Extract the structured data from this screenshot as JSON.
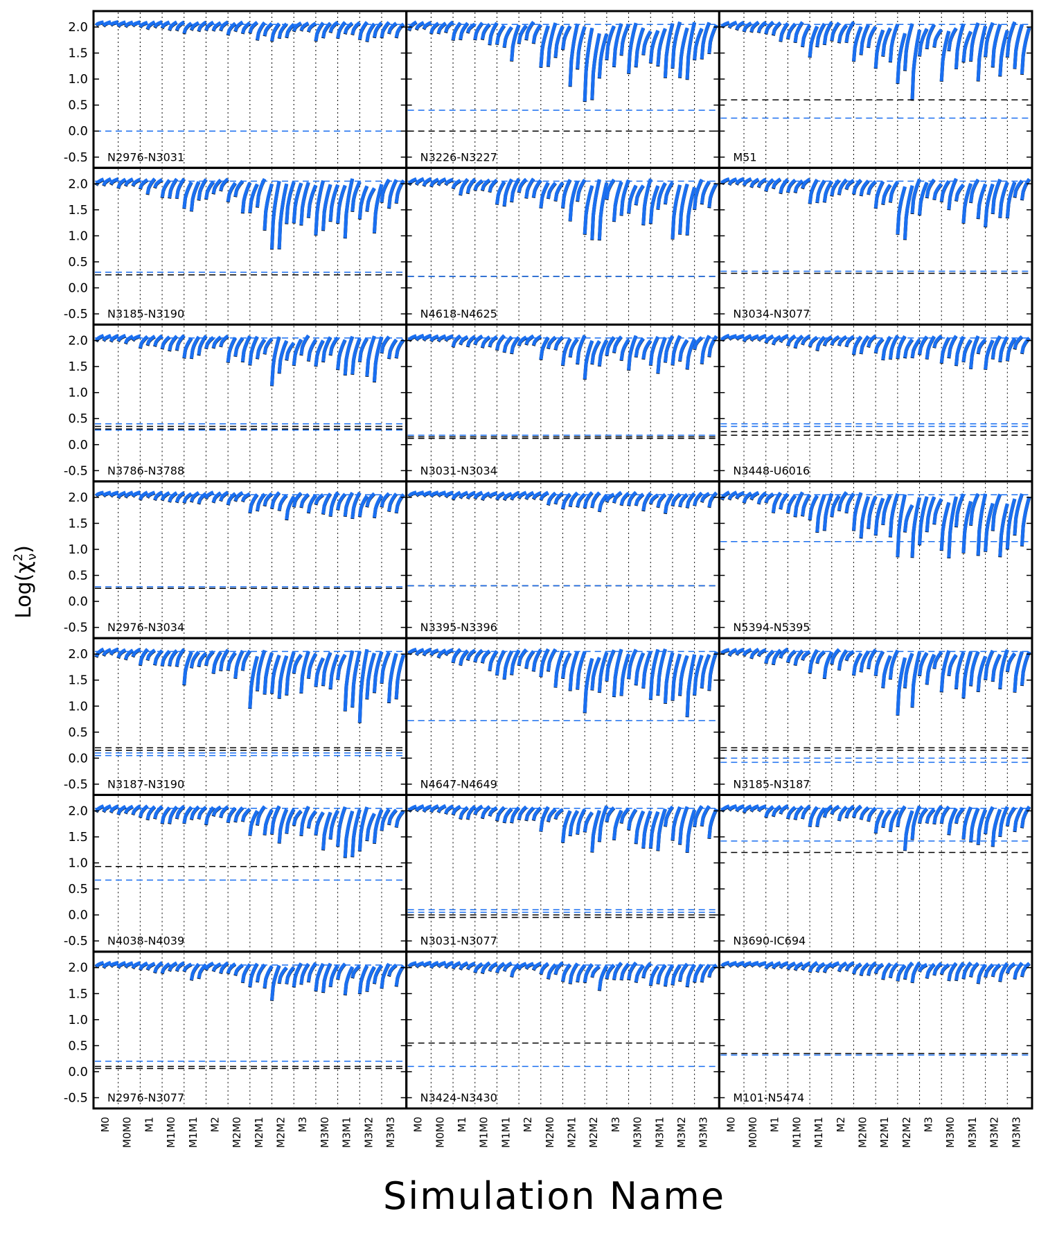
{
  "chart_data": {
    "type": "scatter",
    "ylabel": "Log(χ²ν)",
    "xlabel": "Simulation Name",
    "ylim": [
      -0.6,
      2.2
    ],
    "yticks": [
      "2.0",
      "1.5",
      "1.0",
      "0.5",
      "0.0",
      "-0.5"
    ],
    "xticks": [
      "M0",
      "M0M0",
      "M1",
      "M1M0",
      "M1M1",
      "M2",
      "M2M0",
      "M2M1",
      "M2M2",
      "M3",
      "M3M0",
      "M3M1",
      "M3M2",
      "M3M3"
    ],
    "grid": "vertical dotted lines at category boundaries",
    "series_colors": {
      "black": "#000000",
      "blue": "#1a6ff0"
    },
    "panels": [
      {
        "name": "N2976-N3031",
        "h_black": [
          0.0
        ],
        "h_blue": [
          0.0,
          2.05
        ]
      },
      {
        "name": "N3185-N3190",
        "h_black": [
          0.25
        ],
        "h_blue": [
          0.3,
          2.05
        ]
      },
      {
        "name": "N3786-N3788",
        "h_black": [
          0.35,
          0.3
        ],
        "h_blue": [
          0.4,
          0.28,
          2.05
        ]
      },
      {
        "name": "N2976-N3034",
        "h_black": [
          0.25
        ],
        "h_blue": [
          0.28,
          2.05
        ]
      },
      {
        "name": "N3187-N3190",
        "h_black": [
          0.2,
          0.15
        ],
        "h_blue": [
          0.1,
          0.05,
          2.05
        ]
      },
      {
        "name": "N4038-N4039",
        "h_black": [
          0.93
        ],
        "h_blue": [
          0.67,
          2.05
        ]
      },
      {
        "name": "N2976-N3077",
        "h_black": [
          0.1,
          0.06
        ],
        "h_blue": [
          0.2,
          2.05
        ]
      },
      {
        "name": "N3226-N3227",
        "h_black": [
          0.0
        ],
        "h_blue": [
          0.4,
          2.05
        ]
      },
      {
        "name": "N4618-N4625",
        "h_black": [
          0.22
        ],
        "h_blue": [
          0.22,
          2.05
        ]
      },
      {
        "name": "N3031-N3034",
        "h_black": [
          0.15,
          0.12
        ],
        "h_blue": [
          0.18,
          2.05
        ]
      },
      {
        "name": "N3395-N3396",
        "h_black": [
          0.3
        ],
        "h_blue": [
          0.3,
          2.05
        ]
      },
      {
        "name": "N4647-N4649",
        "h_black": [
          0.72
        ],
        "h_blue": [
          0.72,
          2.05
        ]
      },
      {
        "name": "N3031-N3077",
        "h_black": [
          0.0,
          -0.05
        ],
        "h_blue": [
          0.05,
          0.1,
          2.05
        ]
      },
      {
        "name": "N3424-N3430",
        "h_black": [
          0.55
        ],
        "h_blue": [
          0.1,
          2.05
        ]
      },
      {
        "name": "M51",
        "h_black": [
          0.6
        ],
        "h_blue": [
          0.25,
          2.05
        ]
      },
      {
        "name": "N3034-N3077",
        "h_black": [
          0.28
        ],
        "h_blue": [
          0.32,
          2.05
        ]
      },
      {
        "name": "N3448-U6016",
        "h_black": [
          0.18,
          0.25
        ],
        "h_blue": [
          0.35,
          0.4,
          2.05
        ]
      },
      {
        "name": "N5394-N5395",
        "h_black": [
          1.15
        ],
        "h_blue": [
          1.15,
          2.05
        ]
      },
      {
        "name": "N3185-N3187",
        "h_black": [
          0.2,
          0.15
        ],
        "h_blue": [
          0.0,
          -0.08,
          2.05
        ]
      },
      {
        "name": "N3690-IC694",
        "h_black": [
          1.2
        ],
        "h_blue": [
          1.42,
          2.05
        ]
      },
      {
        "name": "M101-N5474",
        "h_black": [
          0.35
        ],
        "h_blue": [
          0.32,
          2.05
        ]
      }
    ]
  }
}
